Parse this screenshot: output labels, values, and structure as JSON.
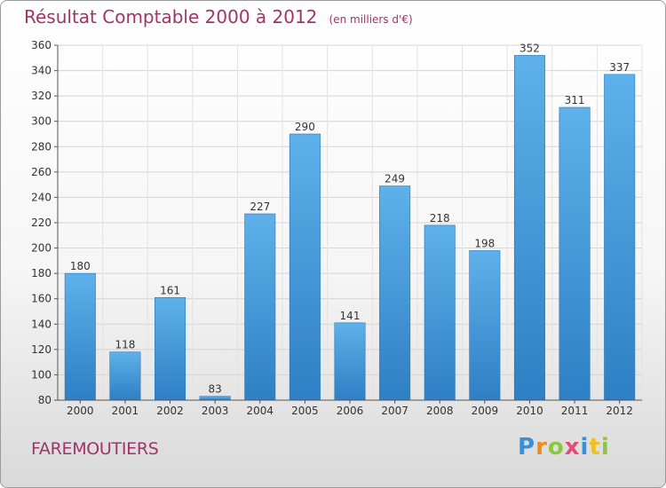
{
  "chart_data": {
    "type": "bar",
    "title": "Résultat Comptable 2000 à 2012",
    "subtitle": "(en milliers d'€)",
    "categories": [
      "2000",
      "2001",
      "2002",
      "2003",
      "2004",
      "2005",
      "2006",
      "2007",
      "2008",
      "2009",
      "2010",
      "2011",
      "2012"
    ],
    "values": [
      180,
      118,
      161,
      83,
      227,
      290,
      141,
      249,
      218,
      198,
      352,
      311,
      337
    ],
    "ylim": [
      80,
      360
    ],
    "yticks": [
      80,
      100,
      120,
      140,
      160,
      180,
      200,
      220,
      240,
      260,
      280,
      300,
      320,
      340,
      360
    ],
    "xlabel": "",
    "ylabel": "",
    "grid": true,
    "data_labels": true,
    "bar_color": "#4a9fe0"
  },
  "footer": {
    "place": "FAREMOUTIERS",
    "brand_letters": [
      "P",
      "r",
      "o",
      "x",
      "i",
      "t",
      "i"
    ],
    "brand_colors": [
      "#3a8fd8",
      "#f08a1c",
      "#8cc63f",
      "#e84a7a",
      "#3a8fd8",
      "#f0c020",
      "#8cc63f"
    ]
  }
}
